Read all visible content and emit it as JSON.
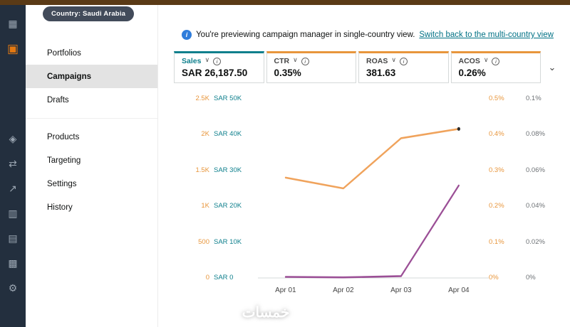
{
  "country_badge": "Country: Saudi Arabia",
  "banner": {
    "text": "You're previewing campaign manager in single-country view.",
    "link_label": "Switch back to the multi-country view"
  },
  "rail": {
    "icons": [
      {
        "name": "apps-grid-icon",
        "glyph": "▦"
      },
      {
        "name": "campaigns-icon",
        "glyph": "▣"
      },
      {
        "name": "shield-icon",
        "glyph": "◈"
      },
      {
        "name": "swap-icon",
        "glyph": "⇄"
      },
      {
        "name": "share-icon",
        "glyph": "↗"
      },
      {
        "name": "chart-columns-icon",
        "glyph": "▥"
      },
      {
        "name": "table-icon",
        "glyph": "▤"
      },
      {
        "name": "dots-grid-icon",
        "glyph": "▩"
      },
      {
        "name": "settings-gear-icon",
        "glyph": "⚙"
      }
    ]
  },
  "sidebar": {
    "items": [
      {
        "label": "Portfolios",
        "active": false
      },
      {
        "label": "Campaigns",
        "active": true
      },
      {
        "label": "Drafts",
        "active": false
      },
      {
        "label": "Products",
        "active": false
      },
      {
        "label": "Targeting",
        "active": false
      },
      {
        "label": "Settings",
        "active": false
      },
      {
        "label": "History",
        "active": false
      }
    ]
  },
  "metrics": {
    "cards": [
      {
        "label": "Sales",
        "value": "SAR 26,187.50",
        "accent": "#0d7f8c",
        "label_color": "#0d7f8c"
      },
      {
        "label": "CTR",
        "value": "0.35%",
        "accent": "#e8963c",
        "label_color": "#474747"
      },
      {
        "label": "ROAS",
        "value": "381.63",
        "accent": "#e8963c",
        "label_color": "#474747"
      },
      {
        "label": "ACOS",
        "value": "0.26%",
        "accent": "#e8963c",
        "label_color": "#474747"
      }
    ],
    "collapse_icon": "⌄"
  },
  "chart_data": {
    "type": "line",
    "categories": [
      "Apr 01",
      "Apr 02",
      "Apr 03",
      "Apr 04"
    ],
    "series": [
      {
        "name": "CTR",
        "color": "#f0a35c",
        "values": [
          1400,
          1250,
          1950,
          2080
        ]
      },
      {
        "name": "ACOS",
        "color": "#9b4f96",
        "values": [
          15,
          8,
          25,
          1290
        ]
      }
    ],
    "left_axis_primary": {
      "color": "#e8963c",
      "max": 2500,
      "ticks": [
        "2.5K",
        "2K",
        "1.5K",
        "1K",
        "500",
        "0"
      ]
    },
    "left_axis_secondary": {
      "color": "#0d7f8c",
      "ticks": [
        "SAR 50K",
        "SAR 40K",
        "SAR 30K",
        "SAR 20K",
        "SAR 10K",
        "SAR 0"
      ]
    },
    "right_axis_primary": {
      "color": "#e8963c",
      "ticks": [
        "0.5%",
        "0.4%",
        "0.3%",
        "0.2%",
        "0.1%",
        "0%"
      ]
    },
    "right_axis_secondary": {
      "color": "#6d7175",
      "ticks": [
        "0.1%",
        "0.08%",
        "0.06%",
        "0.04%",
        "0.02%",
        "0%"
      ]
    },
    "grid": "baseline-only",
    "legend": "none",
    "marker": {
      "series": "CTR",
      "point_index": 3,
      "color": "#2b2b2b"
    }
  },
  "watermark": "خمسات"
}
